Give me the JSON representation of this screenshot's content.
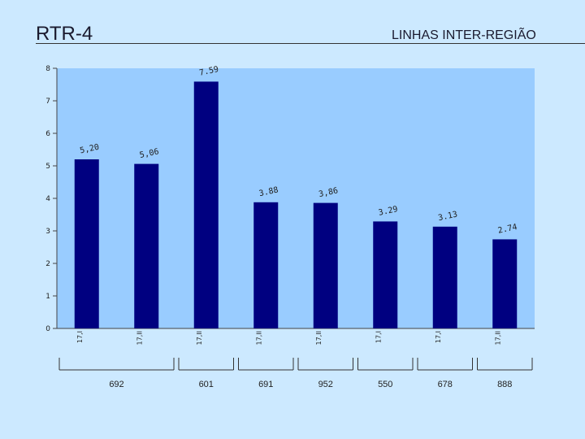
{
  "page": {
    "title": "RTR-4",
    "subtitle": "LINHAS INTER-REGIÃO"
  },
  "colors": {
    "background": "#cce9ff",
    "plot_area": "#99ccff",
    "bar": "#000080"
  },
  "chart_data": {
    "type": "bar",
    "categories": [
      "17,I",
      "17,II",
      "17,II",
      "17,II",
      "17,II",
      "17,I",
      "17,I",
      "17,II"
    ],
    "values": [
      5.2,
      5.06,
      7.59,
      3.88,
      3.86,
      3.29,
      3.13,
      2.74
    ],
    "value_labels": [
      "5,20",
      "5,06",
      "7.59",
      "3.88",
      "3,86",
      "3.29",
      "3.13",
      "2.74"
    ],
    "ylim": [
      0,
      8
    ],
    "yticks": [
      0,
      1,
      2,
      3,
      4,
      5,
      6,
      7,
      8
    ],
    "grid": false,
    "groups": [
      {
        "label": "692",
        "span": [
          0,
          1
        ]
      },
      {
        "label": "601",
        "span": [
          2,
          2
        ]
      },
      {
        "label": "691",
        "span": [
          3,
          3
        ]
      },
      {
        "label": "952",
        "span": [
          4,
          4
        ]
      },
      {
        "label": "550",
        "span": [
          5,
          5
        ]
      },
      {
        "label": "678",
        "span": [
          6,
          6
        ]
      },
      {
        "label": "888",
        "span": [
          7,
          7
        ]
      }
    ]
  }
}
